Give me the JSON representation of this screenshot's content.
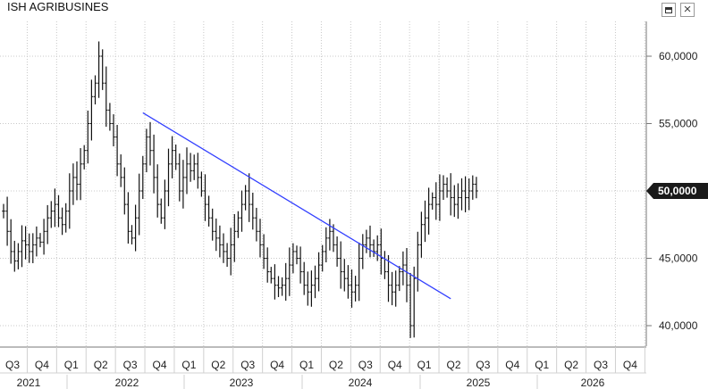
{
  "window": {
    "title": "ISH AGRIBUSINES",
    "close_glyph": "×",
    "controls": [
      "maximize-icon",
      "close-icon"
    ]
  },
  "colors": {
    "bars": "#111111",
    "trendline": "#3340ff",
    "grid": "#c8c8c8",
    "price_tag_bg": "#1a1a1a",
    "price_tag_text": "#ffffff"
  },
  "chart_data": {
    "type": "ohlc",
    "title": "ISH AGRIBUSINES",
    "xlabel": "",
    "ylabel": "",
    "ylim": [
      38.5,
      63
    ],
    "grid": true,
    "y_ticks": [
      "60,0000",
      "55,0000",
      "50,0000",
      "45,0000",
      "40,0000"
    ],
    "y_tick_values": [
      60,
      55,
      50,
      45,
      40
    ],
    "last_price": "50,0000",
    "x_quarters": [
      "Q3",
      "Q4",
      "Q1",
      "Q2",
      "Q3",
      "Q4",
      "Q1",
      "Q2",
      "Q3",
      "Q4",
      "Q1",
      "Q2",
      "Q3",
      "Q4",
      "Q1",
      "Q2",
      "Q3",
      "Q4",
      "Q1",
      "Q2",
      "Q3",
      "Q4"
    ],
    "x_years": [
      "2021",
      "2022",
      "2023",
      "2024",
      "2025",
      "2026"
    ],
    "weekly_close": [
      48.5,
      47.0,
      45.5,
      44.8,
      45.5,
      46.3,
      46.0,
      45.5,
      46.0,
      46.5,
      46.2,
      47.0,
      48.0,
      48.5,
      49.0,
      48.0,
      47.5,
      48.5,
      50.0,
      51.0,
      50.5,
      52.0,
      53.0,
      55.0,
      57.0,
      58.0,
      60.0,
      58.0,
      56.0,
      55.0,
      54.0,
      52.0,
      51.0,
      49.0,
      47.0,
      46.5,
      48.0,
      50.0,
      52.0,
      54.0,
      53.0,
      51.0,
      49.0,
      48.0,
      50.0,
      52.0,
      53.0,
      52.0,
      50.0,
      51.0,
      52.0,
      51.5,
      52.0,
      51.0,
      50.0,
      49.0,
      48.0,
      47.0,
      46.5,
      46.0,
      45.5,
      45.0,
      46.0,
      47.0,
      48.0,
      49.0,
      50.0,
      49.0,
      48.0,
      47.0,
      46.0,
      45.0,
      44.0,
      43.5,
      43.0,
      42.8,
      43.0,
      43.5,
      44.5,
      45.5,
      45.0,
      44.0,
      43.0,
      42.5,
      43.0,
      43.5,
      44.5,
      45.5,
      46.5,
      47.0,
      46.0,
      45.0,
      44.0,
      43.5,
      43.0,
      42.5,
      43.0,
      45.0,
      46.0,
      46.5,
      46.0,
      45.5,
      46.0,
      45.0,
      44.0,
      43.0,
      42.5,
      43.0,
      44.0,
      44.5,
      43.0,
      40.0,
      43.5,
      46.0,
      47.5,
      48.0,
      49.0,
      49.5,
      49.0,
      50.0,
      50.5,
      50.0,
      49.5,
      49.0,
      49.5,
      50.0,
      49.5,
      50.0,
      50.5,
      50.0
    ],
    "trendline": {
      "start": {
        "week": 38,
        "value": 55.8
      },
      "end": {
        "week": 122,
        "value": 42.0
      }
    }
  }
}
